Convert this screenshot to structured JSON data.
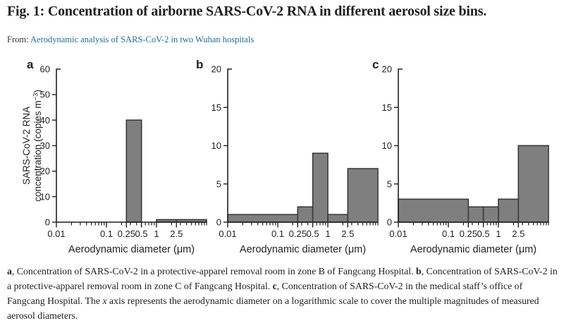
{
  "header": {
    "title": "Fig. 1: Concentration of airborne SARS-CoV-2 RNA in different aerosol size bins.",
    "from_label": "From:",
    "source_link_text": "Aerodynamic analysis of SARS-CoV-2 in two Wuhan hospitals"
  },
  "colors": {
    "bar_fill": "#7f7f7f",
    "bar_stroke": "#3a3a3a",
    "axis": "#231f20",
    "link": "#1e6e91",
    "text": "#1f1f1f"
  },
  "chart_data": [
    {
      "type": "bar",
      "panel_label": "a",
      "xlabel": "Aerodynamic diameter (μm)",
      "ylabel_lines": [
        "SARS-CoV-2 RNA",
        "concentration (copies m⁻³)"
      ],
      "xscale": "log",
      "xlim": [
        0.01,
        10
      ],
      "ylim": [
        0,
        60
      ],
      "yticks": [
        0,
        10,
        20,
        30,
        40,
        50,
        60
      ],
      "xtick_values": [
        0.01,
        0.1,
        0.25,
        0.5,
        1,
        2.5
      ],
      "xtick_labels": [
        "0.01",
        "0.1",
        "0.25",
        "0.5",
        "1",
        "2.5"
      ],
      "bins": [
        {
          "x0": 0.01,
          "x1": 0.25,
          "value": 0
        },
        {
          "x0": 0.25,
          "x1": 0.5,
          "value": 40
        },
        {
          "x0": 0.5,
          "x1": 1,
          "value": 0
        },
        {
          "x0": 1,
          "x1": 2.5,
          "value": 1
        },
        {
          "x0": 2.5,
          "x1": 10,
          "value": 1
        }
      ]
    },
    {
      "type": "bar",
      "panel_label": "b",
      "xlabel": "Aerodynamic diameter (μm)",
      "ylabel_lines": [],
      "xscale": "log",
      "xlim": [
        0.01,
        10
      ],
      "ylim": [
        0,
        20
      ],
      "yticks": [
        0,
        5,
        10,
        15,
        20
      ],
      "xtick_values": [
        0.01,
        0.1,
        0.25,
        0.5,
        1,
        2.5
      ],
      "xtick_labels": [
        "0.01",
        "0.1",
        "0.25",
        "0.5",
        "1",
        "2.5"
      ],
      "bins": [
        {
          "x0": 0.01,
          "x1": 0.25,
          "value": 1
        },
        {
          "x0": 0.25,
          "x1": 0.5,
          "value": 2
        },
        {
          "x0": 0.5,
          "x1": 1,
          "value": 9
        },
        {
          "x0": 1,
          "x1": 2.5,
          "value": 1
        },
        {
          "x0": 2.5,
          "x1": 10,
          "value": 7
        }
      ]
    },
    {
      "type": "bar",
      "panel_label": "c",
      "xlabel": "Aerodynamic diameter (μm)",
      "ylabel_lines": [],
      "xscale": "log",
      "xlim": [
        0.01,
        10
      ],
      "ylim": [
        0,
        20
      ],
      "yticks": [
        0,
        5,
        10,
        15,
        20
      ],
      "xtick_values": [
        0.01,
        0.1,
        0.25,
        0.5,
        1,
        2.5
      ],
      "xtick_labels": [
        "0.01",
        "0.1",
        "0.25",
        "0.5",
        "1",
        "2.5"
      ],
      "bins": [
        {
          "x0": 0.01,
          "x1": 0.25,
          "value": 3
        },
        {
          "x0": 0.25,
          "x1": 0.5,
          "value": 2
        },
        {
          "x0": 0.5,
          "x1": 1,
          "value": 2
        },
        {
          "x0": 1,
          "x1": 2.5,
          "value": 3
        },
        {
          "x0": 2.5,
          "x1": 10,
          "value": 10
        }
      ]
    }
  ],
  "caption": {
    "segments": [
      {
        "text": "a",
        "bold": true
      },
      {
        "text": ", Concentration of SARS-CoV-2 in a protective-apparel removal room in zone B of Fangcang Hospital. "
      },
      {
        "text": "b",
        "bold": true
      },
      {
        "text": ", Concentration of SARS-CoV-2 in a protective-apparel removal room in zone C of Fangcang Hospital. "
      },
      {
        "text": "c",
        "bold": true
      },
      {
        "text": ", Concentration of SARS-CoV-2 in the medical staff’s office of Fangcang Hospital. The "
      },
      {
        "text": "x",
        "italic": true
      },
      {
        "text": " axis represents the aerodynamic diameter on a logarithmic scale to cover the multiple magnitudes of measured aerosol diameters."
      }
    ]
  }
}
